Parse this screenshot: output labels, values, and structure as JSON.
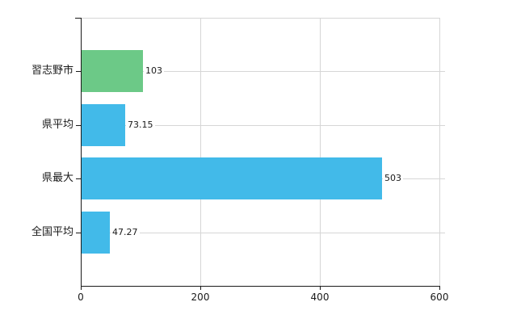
{
  "chart_data": {
    "type": "bar",
    "orientation": "horizontal",
    "title": "",
    "xlabel": "",
    "ylabel": "",
    "categories": [
      "習志野市",
      "県平均",
      "県最大",
      "全国平均"
    ],
    "values": [
      103,
      73.15,
      503,
      47.27
    ],
    "value_labels": [
      "103",
      "73.15",
      "503",
      "47.27"
    ],
    "series_colors": [
      "#6cc987",
      "#42bae9",
      "#42bae9",
      "#42bae9"
    ],
    "xlim": [
      0,
      600
    ],
    "x_ticks": [
      0,
      200,
      400,
      600
    ],
    "x_tick_labels": [
      "0",
      "200",
      "400",
      "600"
    ],
    "grid": true,
    "legend": false,
    "colors": {
      "grid": "#d6d6d6",
      "axis": "#1a1a1a",
      "text": "#1a1a1a",
      "background": "#ffffff"
    }
  }
}
